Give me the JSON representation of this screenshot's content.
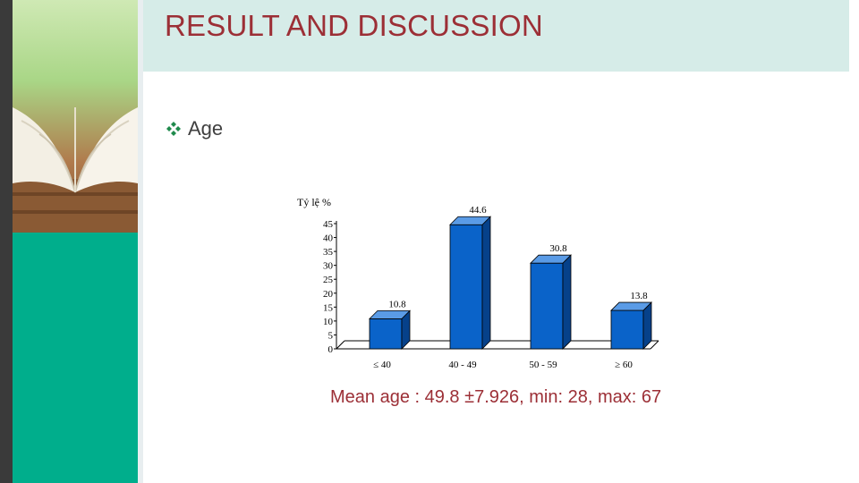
{
  "slide": {
    "title": "RESULT AND DISCUSSION",
    "bullet": "Age",
    "caption": "Mean age : 49.8 ±7.926, min: 28, max: 67"
  },
  "colors": {
    "title": "#9c2f36",
    "bar_front": "#0a63c9",
    "bar_side": "#06418a",
    "bar_top": "#5a9be6",
    "teal": "#00ae8c",
    "bullet": "#1f8a4c"
  },
  "chart_data": {
    "type": "bar",
    "ylabel": "Tỷ lệ %",
    "yticks": [
      "45",
      "40",
      "35",
      "30",
      "25",
      "20",
      "15",
      "10",
      "5",
      "0"
    ],
    "ylim": [
      0,
      45
    ],
    "categories": [
      "≤ 40",
      "40 - 49",
      "50 - 59",
      "≥ 60"
    ],
    "values": [
      10.8,
      44.6,
      30.8,
      13.8
    ],
    "data_labels": [
      "10.8",
      "44.6",
      "30.8",
      "13.8"
    ],
    "grid": false
  }
}
